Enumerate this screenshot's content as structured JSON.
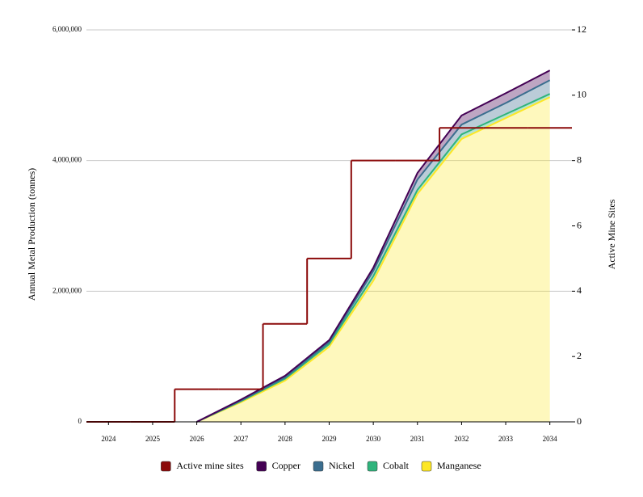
{
  "chart_data": {
    "type": "line",
    "y_label": "Annual Metal Production (tonnes)",
    "y2_label": "Active Mine Sites",
    "x": [
      2024,
      2025,
      2026,
      2027,
      2028,
      2029,
      2030,
      2031,
      2032,
      2033,
      2034
    ],
    "xlim": [
      2023.5,
      2034.5
    ],
    "xticks": [
      2024,
      2025,
      2026,
      2027,
      2028,
      2029,
      2030,
      2031,
      2032,
      2033,
      2034
    ],
    "ylim": [
      0,
      6000000
    ],
    "yticks": [
      {
        "value": 0,
        "label": "0"
      },
      {
        "value": 2000000,
        "label": "2,000,000"
      },
      {
        "value": 4000000,
        "label": "4,000,000"
      },
      {
        "value": 6000000,
        "label": "6,000,000"
      }
    ],
    "y2lim": [
      0,
      12
    ],
    "y2ticks": [
      0,
      2,
      4,
      6,
      8,
      10,
      12
    ],
    "grid": true,
    "legend": "bottom",
    "series": [
      {
        "name": "Active mine sites",
        "color": "#8b0a0a",
        "axis": "y2",
        "step": true,
        "values": [
          0,
          0,
          1,
          1,
          3,
          5,
          8,
          8,
          9,
          9,
          9
        ]
      },
      {
        "name": "Copper",
        "color": "#440154",
        "stacked": true,
        "values": [
          null,
          null,
          0,
          15000,
          25000,
          30000,
          50000,
          100000,
          140000,
          150000,
          150000
        ]
      },
      {
        "name": "Nickel",
        "color": "#3b6e8f",
        "stacked": true,
        "values": [
          null,
          null,
          0,
          10000,
          20000,
          30000,
          80000,
          160000,
          150000,
          170000,
          210000
        ]
      },
      {
        "name": "Cobalt",
        "color": "#2fb47c",
        "stacked": true,
        "values": [
          null,
          null,
          0,
          15000,
          30000,
          40000,
          70000,
          60000,
          70000,
          60000,
          50000
        ]
      },
      {
        "name": "Manganese",
        "color": "#fde725",
        "stacked": true,
        "values": [
          null,
          null,
          0,
          300000,
          630000,
          1150000,
          2160000,
          3490000,
          4330000,
          4650000,
          4970000
        ]
      }
    ]
  }
}
